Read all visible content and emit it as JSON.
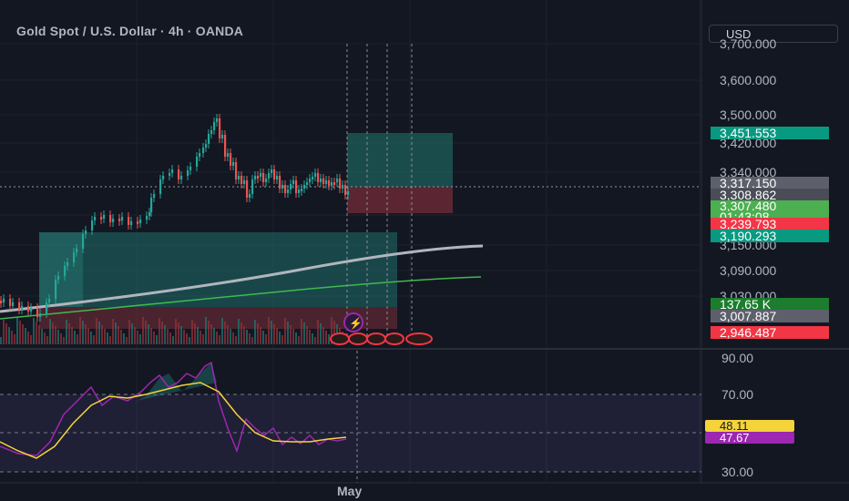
{
  "header": {
    "title": "Gold Spot / U.S. Dollar · 4h · OANDA",
    "currency": "USD"
  },
  "price_axis": {
    "labels": [
      "3,700.000",
      "3,600.000",
      "3,500.000",
      "3,420.000",
      "3,340.000",
      "3,150.000",
      "3,090.000",
      "3,030.000"
    ]
  },
  "tags": {
    "target": "3,451.553",
    "bid": "3,317.150",
    "prev": "3,308.862",
    "last": "3,307.480",
    "countdown": "01:43:08",
    "stop": "3,239.793",
    "ma_level": "3,190.293",
    "volume": "137.65 K",
    "low_gray": "3,007.887",
    "low_red": "2,946.487"
  },
  "rsi": {
    "axis_labels": [
      "90.00",
      "70.00",
      "30.00"
    ],
    "ma_value": "48.11",
    "rsi_value": "47.67"
  },
  "time_axis": {
    "label": "May"
  },
  "colors": {
    "background": "#131722",
    "bull": "#26a69a",
    "bear": "#ef5350",
    "rsi_line": "#9c27b0",
    "rsi_ma": "#f5d33a",
    "tag_gray": "#5d606b",
    "tag_green": "#4caf50",
    "tag_teal": "#089981",
    "tag_red": "#f23645"
  }
}
